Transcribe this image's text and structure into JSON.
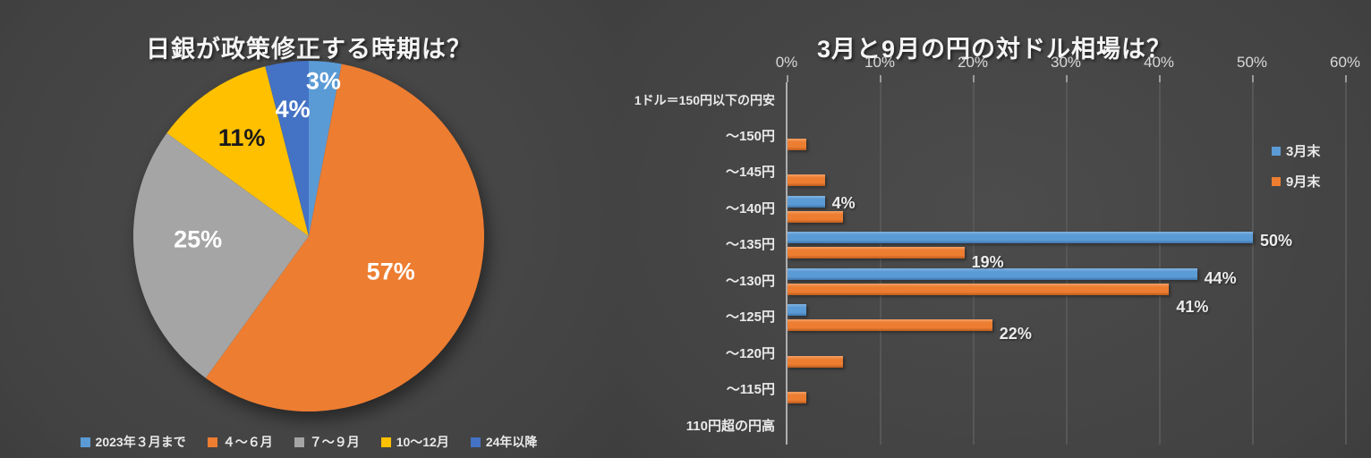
{
  "theme": {
    "background_center": "#4c4c4c",
    "background_edge": "#2c2c2c",
    "text_color": "#ececec",
    "grid_color": "#575757",
    "axis_color": "#aeaeae"
  },
  "chart_data": [
    {
      "type": "pie",
      "title": "日銀が政策修正する時期は？",
      "labels": [
        "2023年３月まで",
        "４〜６月",
        "７〜９月",
        "10〜12月",
        "24年以降"
      ],
      "values": [
        3,
        57,
        25,
        11,
        4
      ],
      "data_labels": [
        "3%",
        "57%",
        "25%",
        "11%",
        "4%"
      ],
      "colors": [
        "#5B9BD5",
        "#ED7D31",
        "#A5A5A5",
        "#FFC000",
        "#4472C4"
      ],
      "data_label_colors": [
        "#ffffff",
        "#ffffff",
        "#ffffff",
        "#1a1a1a",
        "#ffffff"
      ],
      "start_angle_deg": 0,
      "direction": "clockwise",
      "legend_position": "bottom"
    },
    {
      "type": "bar",
      "orientation": "horizontal",
      "title": "3月と9月の円の対ドル相場は？",
      "categories": [
        "1ドル＝150円以下の円安",
        "〜150円",
        "〜145円",
        "〜140円",
        "〜135円",
        "〜130円",
        "〜125円",
        "〜120円",
        "〜115円",
        "110円超の円高"
      ],
      "series": [
        {
          "name": "3月末",
          "color": "#5B9BD5",
          "values": [
            0,
            0,
            0,
            4,
            50,
            44,
            2,
            0,
            0,
            0
          ],
          "labeled_indices": [
            3,
            4,
            5
          ]
        },
        {
          "name": "9月末",
          "color": "#ED7D31",
          "values": [
            0,
            2,
            4,
            6,
            19,
            41,
            22,
            6,
            2,
            0
          ],
          "labeled_indices": [
            4,
            5,
            6
          ]
        }
      ],
      "xlim": [
        0,
        60
      ],
      "x_ticks": [
        "0%",
        "10%",
        "20%",
        "30%",
        "40%",
        "50%",
        "60%"
      ],
      "tick_position": "top",
      "grid": true,
      "legend_position": "right"
    }
  ]
}
